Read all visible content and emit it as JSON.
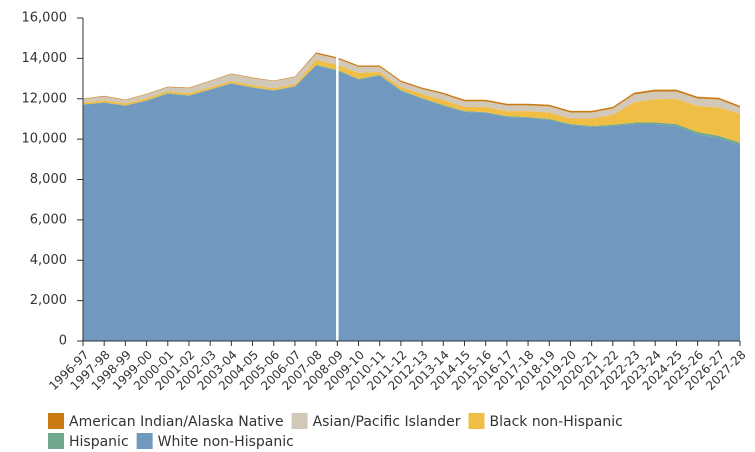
{
  "chart_data": {
    "type": "stacked_area",
    "categories": [
      "1996-97",
      "1997-98",
      "1998-99",
      "1999-00",
      "2000-01",
      "2001-02",
      "2002-03",
      "2003-04",
      "2004-05",
      "2005-06",
      "2006-07",
      "2007-08",
      "2008-09",
      "2009-10",
      "2010-11",
      "2011-12",
      "2012-13",
      "2013-14",
      "2014-15",
      "2015-16",
      "2016-17",
      "2017-18",
      "2018-19",
      "2019-20",
      "2020-21",
      "2021-22",
      "2022-23",
      "2023-24",
      "2024-25",
      "2025-26",
      "2026-27",
      "2027-28"
    ],
    "series": [
      {
        "name": "White non-Hispanic",
        "color": "#7199bf",
        "values": [
          11700,
          11800,
          11650,
          11900,
          12250,
          12150,
          12450,
          12750,
          12550,
          12400,
          12600,
          13650,
          13400,
          12950,
          13150,
          12400,
          12000,
          11650,
          11350,
          11300,
          11100,
          11050,
          10950,
          10700,
          10600,
          10650,
          10750,
          10750,
          10650,
          10250,
          10050,
          9700
        ]
      },
      {
        "name": "Hispanic",
        "color": "#6fa88a",
        "values": [
          20,
          20,
          20,
          20,
          20,
          20,
          20,
          20,
          20,
          20,
          20,
          30,
          30,
          30,
          30,
          30,
          30,
          40,
          40,
          40,
          40,
          40,
          50,
          50,
          50,
          60,
          70,
          80,
          90,
          100,
          110,
          120
        ]
      },
      {
        "name": "Black non-Hispanic",
        "color": "#f0bd45",
        "values": [
          100,
          100,
          100,
          100,
          100,
          100,
          100,
          100,
          100,
          100,
          100,
          250,
          250,
          300,
          150,
          150,
          200,
          250,
          200,
          250,
          250,
          300,
          320,
          270,
          370,
          500,
          1000,
          1150,
          1250,
          1300,
          1400,
          1450
        ]
      },
      {
        "name": "Asian/Pacific Islander",
        "color": "#d2c8b8",
        "values": [
          150,
          200,
          150,
          200,
          200,
          250,
          300,
          350,
          350,
          350,
          350,
          300,
          300,
          300,
          250,
          250,
          250,
          280,
          280,
          280,
          280,
          280,
          300,
          300,
          300,
          310,
          390,
          380,
          370,
          360,
          400,
          290
        ]
      },
      {
        "name": "American Indian/Alaska Native",
        "color": "#c97a12",
        "values": [
          30,
          30,
          30,
          30,
          30,
          30,
          30,
          30,
          30,
          30,
          30,
          70,
          70,
          70,
          70,
          70,
          70,
          80,
          80,
          80,
          80,
          80,
          80,
          80,
          80,
          80,
          90,
          90,
          90,
          90,
          90,
          90
        ]
      }
    ],
    "ylim": [
      0,
      16000
    ],
    "yticks": [
      0,
      {
        "value": 2000,
        "label": "2,000"
      },
      {
        "value": 4000,
        "label": "4,000"
      },
      {
        "value": 6000,
        "label": "6,000"
      },
      {
        "value": 8000,
        "label": "8,000"
      },
      {
        "value": 10000,
        "label": "10,000"
      },
      {
        "value": 12000,
        "label": "12,000"
      },
      {
        "value": 14000,
        "label": "14,000"
      },
      {
        "value": 16000,
        "label": "16,000"
      }
    ]
  }
}
